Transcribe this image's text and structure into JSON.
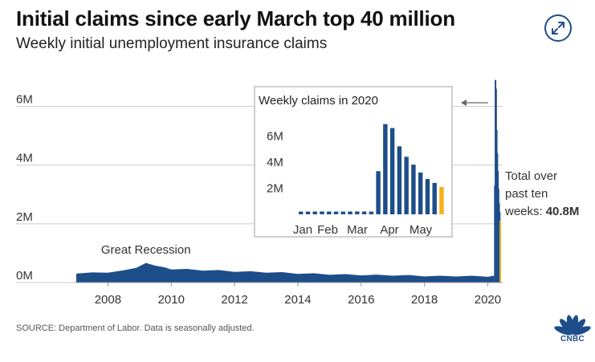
{
  "header": {
    "title": "Initial claims since early March top 40 million",
    "subtitle": "Weekly initial unemployment insurance claims"
  },
  "footer": {
    "source": "SOURCE: Department of Labor. Data is seasonally adjusted.",
    "logo_text": "CNBC"
  },
  "icons": {
    "expand": "expand-icon",
    "arrow": "arrow-left-icon",
    "logo": "cnbc-peacock-logo"
  },
  "colors": {
    "bars": "#1d4e89",
    "highlight": "#f3b21b",
    "grid": "#cccccc"
  },
  "chart_data": [
    {
      "type": "area",
      "title": "Initial claims since early March top 40 million",
      "subtitle": "Weekly initial unemployment insurance claims",
      "xlabel": "",
      "ylabel": "",
      "xlim": [
        2007.0,
        2020.42
      ],
      "ylim": [
        0,
        7000000
      ],
      "y_ticks": [
        0,
        2000000,
        4000000,
        6000000
      ],
      "y_tick_labels": [
        "0M",
        "2M",
        "4M",
        "6M"
      ],
      "x_ticks": [
        2008,
        2010,
        2012,
        2014,
        2016,
        2018,
        2020
      ],
      "x_tick_labels": [
        "2008",
        "2010",
        "2012",
        "2014",
        "2016",
        "2018",
        "2020"
      ],
      "grid": true,
      "series": [
        {
          "x": [
            2007.0,
            2007.5,
            2008.0,
            2008.5,
            2008.9,
            2009.2,
            2009.5,
            2009.8,
            2010.0,
            2010.5,
            2011.0,
            2011.5,
            2012.0,
            2012.5,
            2013.0,
            2013.5,
            2014.0,
            2014.5,
            2015.0,
            2015.5,
            2016.0,
            2016.5,
            2017.0,
            2017.5,
            2018.0,
            2018.5,
            2019.0,
            2019.5,
            2020.0,
            2020.2
          ],
          "values": [
            320000,
            330000,
            350000,
            400000,
            520000,
            650000,
            590000,
            500000,
            460000,
            450000,
            420000,
            410000,
            380000,
            370000,
            350000,
            340000,
            310000,
            300000,
            280000,
            270000,
            260000,
            255000,
            250000,
            240000,
            225000,
            215000,
            220000,
            215000,
            210000,
            220000
          ]
        },
        {
          "name": "2020 weekly claims",
          "x": [
            2020.2,
            2020.219,
            2020.238,
            2020.257,
            2020.276,
            2020.295,
            2020.314,
            2020.333,
            2020.352,
            2020.371
          ],
          "values": [
            3300000,
            6900000,
            6600000,
            5200000,
            4400000,
            3800000,
            3200000,
            2700000,
            2400000,
            2100000
          ]
        }
      ],
      "annotations": [
        {
          "text": "Great Recession",
          "x": 2009.2
        },
        {
          "text_lines": [
            "Total over",
            "past ten",
            "weeks:"
          ],
          "value_text": "40.8M"
        }
      ]
    },
    {
      "type": "bar",
      "title": "Weekly claims in 2020",
      "ylim": [
        0,
        7000000
      ],
      "y_ticks": [
        2000000,
        4000000,
        6000000
      ],
      "y_tick_labels": [
        "2M",
        "4M",
        "6M"
      ],
      "month_labels": [
        "Jan",
        "Feb",
        "Mar",
        "Apr",
        "May"
      ],
      "highlight_last": true,
      "values": [
        210000,
        210000,
        215000,
        220000,
        215000,
        210000,
        210000,
        215000,
        220000,
        215000,
        211000,
        3300000,
        6900000,
        6600000,
        5200000,
        4400000,
        3800000,
        3200000,
        2700000,
        2400000,
        2100000
      ]
    }
  ]
}
